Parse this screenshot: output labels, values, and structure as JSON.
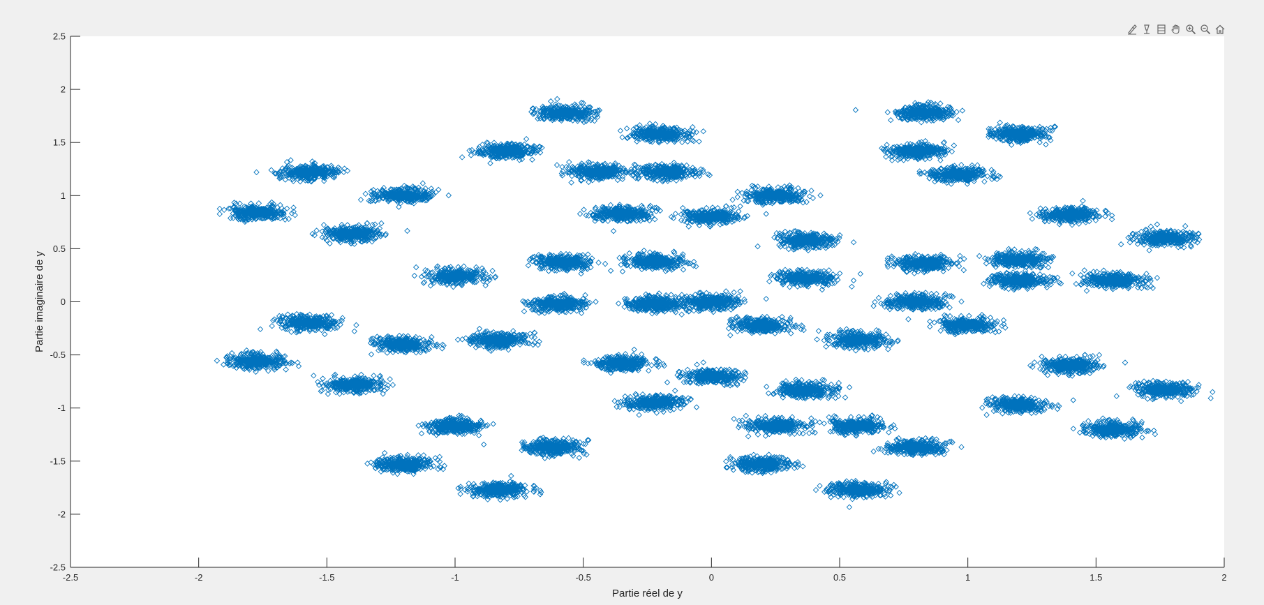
{
  "toolbar": {
    "items": [
      {
        "name": "brush-icon"
      },
      {
        "name": "datatip-icon"
      },
      {
        "name": "rotate-icon"
      },
      {
        "name": "pan-hand-icon"
      },
      {
        "name": "zoom-in-icon"
      },
      {
        "name": "zoom-out-icon"
      },
      {
        "name": "home-icon"
      }
    ]
  },
  "colors": {
    "marker": "#0072BD",
    "axes_background": "#ffffff",
    "figure_background": "#f0f0f0"
  },
  "chart_data": {
    "type": "scatter",
    "title": "",
    "xlabel": "Partie réel de y",
    "ylabel": "Partie imaginaire de y",
    "xlim": [
      -2.5,
      2
    ],
    "ylim": [
      -2.5,
      2.5
    ],
    "xticks": [
      -2.5,
      -2,
      -1.5,
      -1,
      -0.5,
      0,
      0.5,
      1,
      1.5,
      2
    ],
    "yticks": [
      -2.5,
      -2,
      -1.5,
      -1,
      -0.5,
      0,
      0.5,
      1,
      1.5,
      2,
      2.5
    ],
    "xticklabels": [
      "-2.5",
      "-2",
      "-1.5",
      "-1",
      "-0.5",
      "0",
      "0.5",
      "1",
      "1.5",
      "2"
    ],
    "yticklabels": [
      "-2.5",
      "-2",
      "-1.5",
      "-1",
      "-0.5",
      "0",
      "0.5",
      "1",
      "1.5",
      "2",
      "2.5"
    ],
    "marker": "diamond",
    "grid": false,
    "legend": false,
    "cluster_spread": {
      "x": 0.09,
      "y": 0.055
    },
    "cluster_centers": [
      [
        -1.57,
        1.22
      ],
      [
        -1.2,
        1.0
      ],
      [
        -1.77,
        0.84
      ],
      [
        -1.4,
        0.64
      ],
      [
        -1.57,
        -0.2
      ],
      [
        -1.2,
        -0.4
      ],
      [
        -1.77,
        -0.56
      ],
      [
        -1.4,
        -0.78
      ],
      [
        -1.0,
        -1.17
      ],
      [
        -0.62,
        -1.37
      ],
      [
        -1.2,
        -1.53
      ],
      [
        -0.83,
        -1.77
      ],
      [
        -0.8,
        1.42
      ],
      [
        -0.57,
        1.78
      ],
      [
        -0.2,
        1.58
      ],
      [
        -0.44,
        1.22
      ],
      [
        -0.17,
        1.22
      ],
      [
        -0.35,
        0.83
      ],
      [
        0.25,
        1.0
      ],
      [
        0.0,
        0.8
      ],
      [
        0.37,
        0.58
      ],
      [
        -0.57,
        0.37
      ],
      [
        -0.22,
        0.38
      ],
      [
        -1.0,
        0.24
      ],
      [
        -0.6,
        -0.02
      ],
      [
        -0.22,
        -0.02
      ],
      [
        -0.83,
        -0.36
      ],
      [
        -0.35,
        -0.58
      ],
      [
        -0.22,
        -0.95
      ],
      [
        0.0,
        -0.7
      ],
      [
        0.37,
        -0.83
      ],
      [
        0.25,
        -1.17
      ],
      [
        0.2,
        -1.53
      ],
      [
        0.57,
        -1.77
      ],
      [
        0.8,
        -1.37
      ],
      [
        0.57,
        -1.17
      ],
      [
        0.0,
        0.0
      ],
      [
        0.37,
        0.22
      ],
      [
        0.2,
        -0.22
      ],
      [
        0.57,
        -0.36
      ],
      [
        0.8,
        1.42
      ],
      [
        0.83,
        1.78
      ],
      [
        1.2,
        1.58
      ],
      [
        0.96,
        1.2
      ],
      [
        1.4,
        0.82
      ],
      [
        1.77,
        0.6
      ],
      [
        1.2,
        0.4
      ],
      [
        1.57,
        0.2
      ],
      [
        0.83,
        0.36
      ],
      [
        1.2,
        0.2
      ],
      [
        0.8,
        0.0
      ],
      [
        1.0,
        -0.22
      ],
      [
        1.4,
        -0.6
      ],
      [
        1.77,
        -0.83
      ],
      [
        1.2,
        -0.97
      ],
      [
        1.57,
        -1.2
      ]
    ]
  }
}
